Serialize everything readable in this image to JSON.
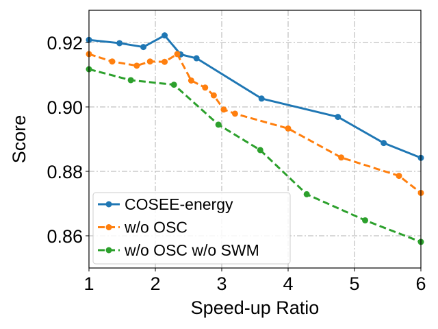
{
  "chart_data": {
    "type": "line",
    "title": "",
    "xlabel": "Speed-up Ratio",
    "ylabel": "Score",
    "xlim": [
      1,
      6
    ],
    "ylim": [
      0.85,
      0.93
    ],
    "xticks": [
      1,
      2,
      3,
      4,
      5,
      6
    ],
    "xtick_labels": [
      "1",
      "2",
      "3",
      "4",
      "5",
      "6"
    ],
    "yticks": [
      0.86,
      0.88,
      0.9,
      0.92
    ],
    "ytick_labels": [
      "0.86",
      "0.88",
      "0.90",
      "0.92"
    ],
    "grid": true,
    "legend_position": "lower-left",
    "series": [
      {
        "name": "COSEE-energy",
        "color": "#1f77b4",
        "linestyle": "solid",
        "x": [
          1.0,
          1.46,
          1.82,
          2.14,
          2.38,
          2.62,
          3.6,
          4.75,
          5.44,
          6.0
        ],
        "y": [
          0.9208,
          0.9198,
          0.9186,
          0.9222,
          0.9163,
          0.9151,
          0.9026,
          0.8969,
          0.8888,
          0.8842
        ]
      },
      {
        "name": "w/o OSC",
        "color": "#ff7f0e",
        "linestyle": "dashed",
        "x": [
          1.0,
          1.35,
          1.72,
          1.92,
          2.14,
          2.33,
          2.54,
          2.75,
          2.88,
          3.03,
          3.2,
          4.0,
          4.8,
          5.67,
          6.0
        ],
        "y": [
          0.9164,
          0.9141,
          0.9128,
          0.9141,
          0.914,
          0.9164,
          0.9082,
          0.906,
          0.9036,
          0.8992,
          0.8979,
          0.8933,
          0.8843,
          0.8786,
          0.8733
        ]
      },
      {
        "name": "w/o OSC w/o SWM",
        "color": "#2ca02c",
        "linestyle": "dashed",
        "x": [
          1.0,
          1.63,
          2.28,
          2.95,
          3.58,
          4.28,
          5.16,
          6.0
        ],
        "y": [
          0.9117,
          0.9083,
          0.9069,
          0.8945,
          0.8866,
          0.8729,
          0.8648,
          0.8581
        ]
      }
    ]
  }
}
